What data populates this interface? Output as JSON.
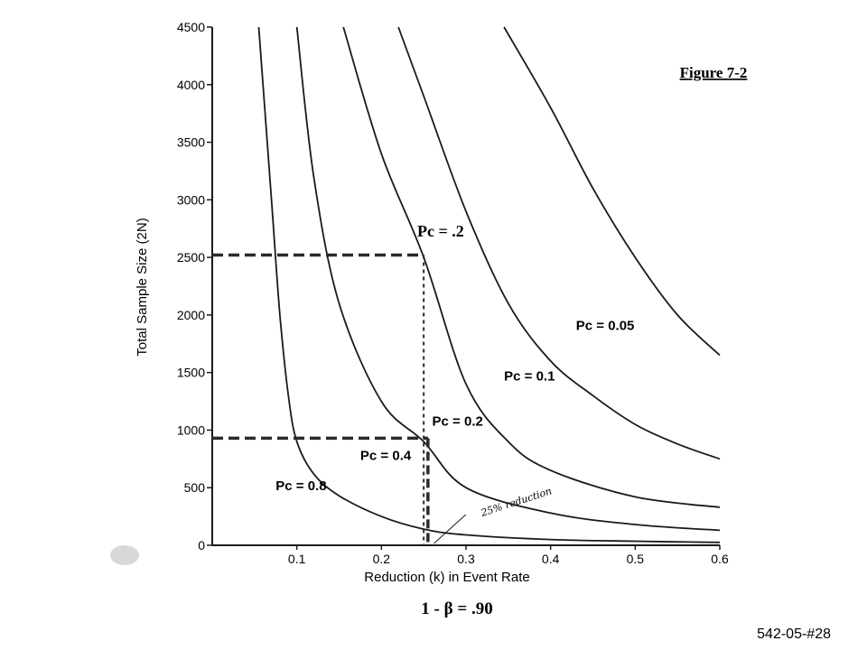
{
  "chart_data": {
    "type": "line",
    "title": "Figure 7-2",
    "xlabel": "Reduction (k) in Event Rate",
    "ylabel": "Total Sample Size (2N)",
    "subtitle": "1 - β = .90",
    "xlim": [
      0,
      0.6
    ],
    "ylim": [
      0,
      4500
    ],
    "x_ticks": [
      "0.1",
      "0.2",
      "0.3",
      "0.4",
      "0.5",
      "0.6"
    ],
    "y_ticks": [
      "0",
      "500",
      "1000",
      "1500",
      "2000",
      "2500",
      "3000",
      "3500",
      "4000",
      "4500"
    ],
    "series": [
      {
        "name": "Pc = 0.8",
        "x": [
          0.055,
          0.07,
          0.08,
          0.09,
          0.1,
          0.12,
          0.15,
          0.2,
          0.25,
          0.3,
          0.4,
          0.5,
          0.6
        ],
        "y": [
          4500,
          3000,
          2000,
          1300,
          900,
          620,
          430,
          250,
          140,
          90,
          50,
          35,
          25
        ]
      },
      {
        "name": "Pc = 0.4",
        "x": [
          0.1,
          0.12,
          0.15,
          0.2,
          0.25,
          0.3,
          0.4,
          0.5,
          0.6
        ],
        "y": [
          4500,
          3200,
          2100,
          1250,
          900,
          500,
          280,
          180,
          130
        ]
      },
      {
        "name": "Pc = 0.2",
        "x": [
          0.155,
          0.2,
          0.25,
          0.3,
          0.35,
          0.4,
          0.5,
          0.6
        ],
        "y": [
          4500,
          3400,
          2500,
          1400,
          900,
          650,
          420,
          330
        ]
      },
      {
        "name": "Pc = 0.1",
        "x": [
          0.22,
          0.25,
          0.3,
          0.35,
          0.4,
          0.45,
          0.5,
          0.55,
          0.6
        ],
        "y": [
          4500,
          3900,
          2900,
          2100,
          1600,
          1300,
          1050,
          880,
          750
        ]
      },
      {
        "name": "Pc = 0.05",
        "x": [
          0.345,
          0.4,
          0.45,
          0.5,
          0.55,
          0.6
        ],
        "y": [
          4500,
          3800,
          3100,
          2500,
          2000,
          1650
        ]
      }
    ],
    "annotations": {
      "pc_header": "Pc = .2",
      "note": "25% reduction",
      "guide_lines": [
        {
          "x": 0.25,
          "y": 2520
        },
        {
          "x": 0.255,
          "y": 930
        }
      ]
    },
    "curve_labels": [
      {
        "text": "Pc = 0.05",
        "series": 4
      },
      {
        "text": "Pc = 0.1",
        "series": 3
      },
      {
        "text": "Pc = 0.2",
        "series": 2
      },
      {
        "text": "Pc = 0.4",
        "series": 1
      },
      {
        "text": "Pc = 0.8",
        "series": 0
      }
    ],
    "colors": {
      "curve": "#1a1a1a",
      "guide": "#2a2a2a"
    }
  },
  "footer": {
    "code": "542-05-#28"
  }
}
